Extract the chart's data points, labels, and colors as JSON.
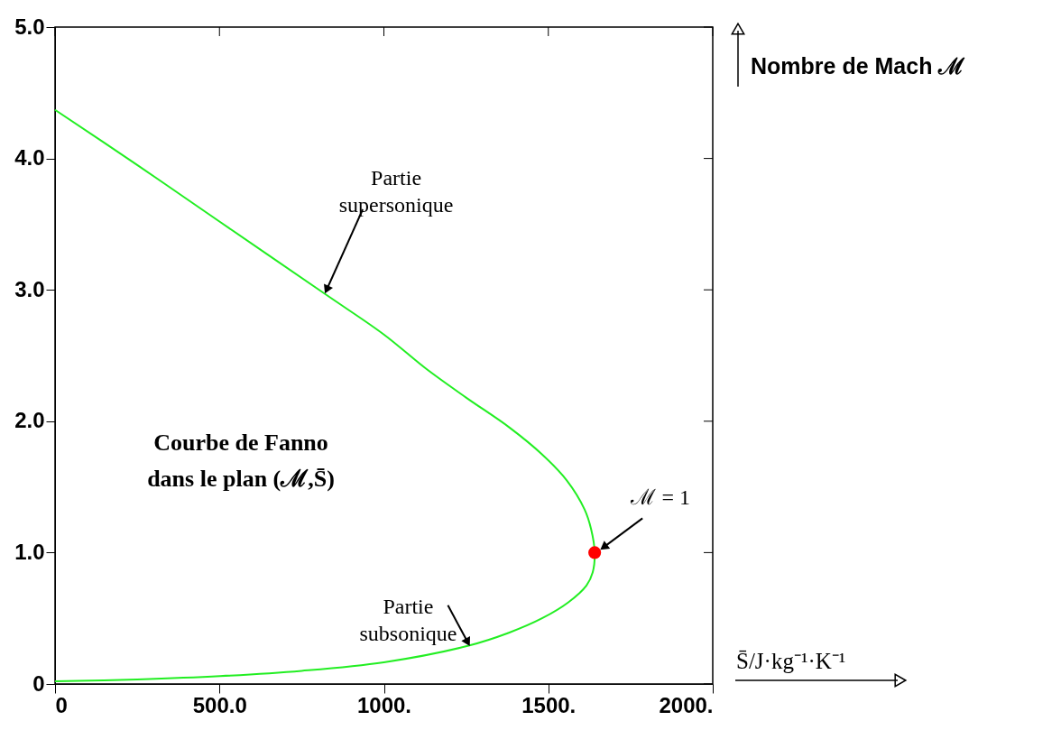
{
  "chart_data": {
    "type": "line",
    "xlabel": "S̄/J·kg⁻¹·K⁻¹",
    "ylabel": "Nombre de Mach ℳ",
    "series": [
      {
        "color": "#22ee22",
        "x": [
          0,
          250,
          500,
          826,
          1000,
          1128,
          1250,
          1383,
          1480,
          1556,
          1610,
          1630,
          1641,
          1635,
          1616,
          1560,
          1481,
          1380,
          1255,
          1000,
          750,
          502,
          250,
          0
        ],
        "values": [
          4.37,
          3.95,
          3.52,
          2.96,
          2.66,
          2.4,
          2.18,
          1.95,
          1.75,
          1.55,
          1.33,
          1.18,
          1.0,
          0.85,
          0.75,
          0.62,
          0.5,
          0.39,
          0.29,
          0.165,
          0.1,
          0.06,
          0.035,
          0.02
        ]
      },
      {
        "type": "scatter",
        "color": "#ff0000",
        "x": [
          1641
        ],
        "values": [
          1.0
        ]
      }
    ],
    "xlim": [
      0,
      2000
    ],
    "ylim": [
      0,
      5
    ],
    "xticks": [
      0,
      {
        "value": 500,
        "label": "500.0"
      },
      {
        "value": 1000,
        "label": "1000."
      },
      {
        "value": 1500,
        "label": "1500."
      },
      {
        "value": 2000,
        "label": "2000."
      }
    ],
    "yticks": [
      0,
      {
        "value": 1,
        "label": "1.0"
      },
      {
        "value": 2,
        "label": "2.0"
      },
      {
        "value": 3,
        "label": "3.0"
      },
      {
        "value": 4,
        "label": "4.0"
      },
      {
        "value": 5,
        "label": "5.0"
      }
    ],
    "grid": false,
    "annotations": [
      {
        "text": "Partie\nsupersonique",
        "x": 826,
        "y": 2.96
      },
      {
        "text": "Partie\nsubsonique",
        "x": 1255,
        "y": 0.29
      },
      {
        "text": "ℳ = 1",
        "x": 1641,
        "y": 1.0
      },
      "Courbe de Fanno\ndans le plan (ℳ,S̄)"
    ]
  }
}
